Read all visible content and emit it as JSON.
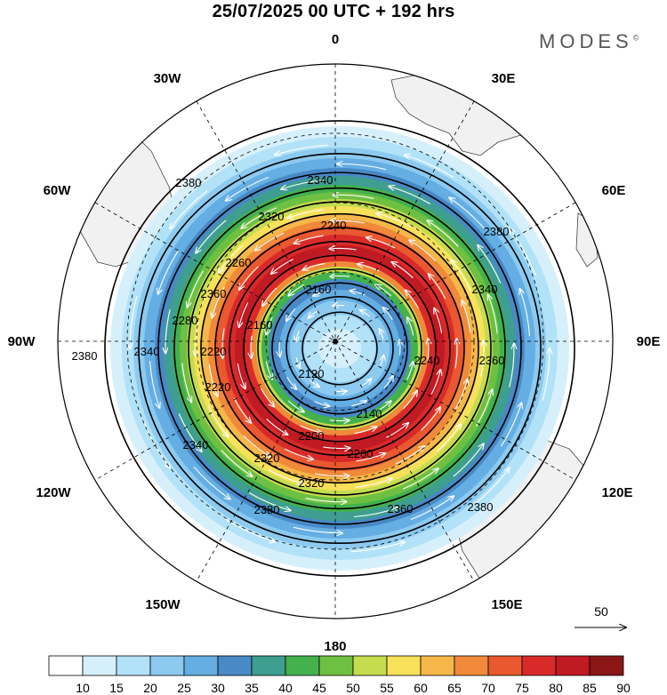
{
  "header": {
    "title": "25/07/2025  00 UTC  + 192 hrs",
    "brand": "MODES",
    "brand_mark": "©"
  },
  "longitude_labels": {
    "top": "0",
    "top_right": "30E",
    "right_upper": "60E",
    "right": "90E",
    "right_lower": "120E",
    "bottom_right": "150E",
    "bottom": "180",
    "bottom_left": "150W",
    "left_lower": "120W",
    "left": "90W",
    "left_upper": "60W",
    "top_left": "30W"
  },
  "contour_labels": [
    "2380",
    "2340",
    "2320",
    "2240",
    "2260",
    "2160",
    "2360",
    "2340",
    "2280",
    "2220",
    "2160",
    "2120",
    "2140",
    "2200",
    "2260",
    "2220",
    "2320",
    "2340",
    "2380",
    "2380",
    "2340",
    "2240",
    "2360",
    "2380",
    "2320",
    "2360",
    "2380"
  ],
  "vector_reference": {
    "label": "50",
    "value": 50
  },
  "colorbar": {
    "ticks": [
      "10",
      "15",
      "20",
      "25",
      "30",
      "35",
      "40",
      "45",
      "50",
      "55",
      "60",
      "65",
      "70",
      "75",
      "80",
      "85",
      "90"
    ],
    "colors": [
      "#ffffff",
      "#d6f0fb",
      "#b2e2f8",
      "#8ccaf0",
      "#64aee3",
      "#4889c6",
      "#3e9e90",
      "#43b14c",
      "#6ec042",
      "#c4dc4e",
      "#f7e05a",
      "#f5b749",
      "#f08a3a",
      "#e9582f",
      "#d92a2a",
      "#c01a22",
      "#8a1616"
    ]
  },
  "colors": {
    "land": "#f1f1f1",
    "coast": "#444444",
    "grid": "#000000"
  }
}
